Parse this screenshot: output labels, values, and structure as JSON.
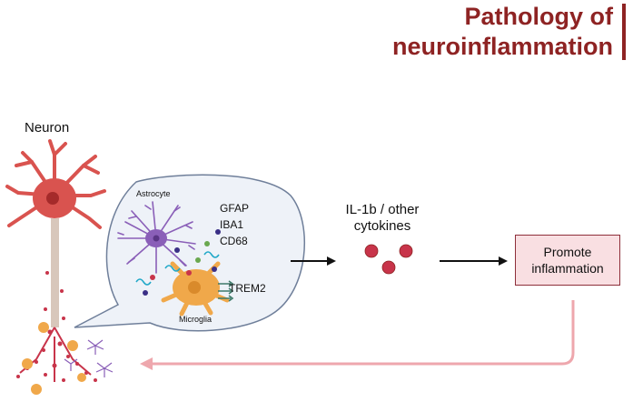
{
  "title": {
    "line1": "Pathology of",
    "line2": "neuroinflammation"
  },
  "labels": {
    "neuron": "Neuron",
    "astrocyte": "Astrocyte",
    "microglia": "Microglia",
    "trem2": "TREM2",
    "cytokines_line1": "IL-1b / other",
    "cytokines_line2": "cytokines",
    "promote_line1": "Promote",
    "promote_line2": "inflammation"
  },
  "markers": [
    "GFAP",
    "IBA1",
    "CD68"
  ],
  "colors": {
    "title": "#8e2323",
    "neuron": "#d9534f",
    "astrocyte": "#8a5fb8",
    "microglia": "#f0a84a",
    "cytokine": "#c8344a",
    "feedback_arrow": "#eea7ad",
    "box_fill": "#f9dfe2",
    "bubble_fill": "#eef2f8",
    "bubble_stroke": "#6f7f9a"
  }
}
